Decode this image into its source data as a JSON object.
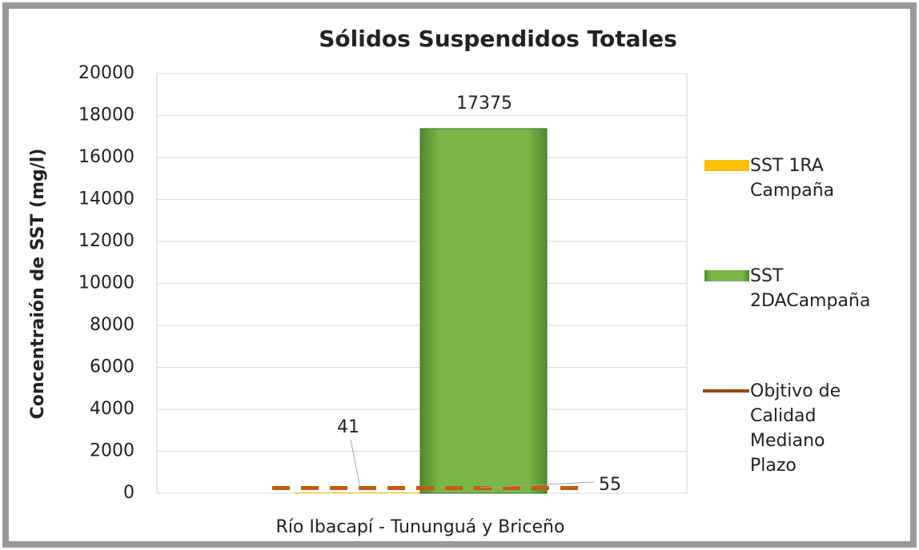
{
  "chart_data": {
    "type": "bar",
    "title": "Sólidos Suspendidos Totales",
    "y_label": "Concentraión de SST (mg/l)",
    "categories": [
      "Río Ibacapí - Tununguá y Briceño"
    ],
    "series": [
      {
        "name": "SST 1RA Campaña",
        "color": "#ffc000",
        "values": [
          41
        ]
      },
      {
        "name": "SST 2DACampaña",
        "color": "#70ad47",
        "values": [
          17375
        ]
      },
      {
        "name": "Objtivo de Calidad Mediano Plazo",
        "color": "#c55a11",
        "type": "line",
        "values": [
          250
        ]
      }
    ],
    "annotations": [
      "55"
    ],
    "ylim": [
      0,
      20000
    ],
    "yticks": [
      0,
      2000,
      4000,
      6000,
      8000,
      10000,
      12000,
      14000,
      16000,
      18000,
      20000
    ],
    "grid": true,
    "legend": "right"
  }
}
